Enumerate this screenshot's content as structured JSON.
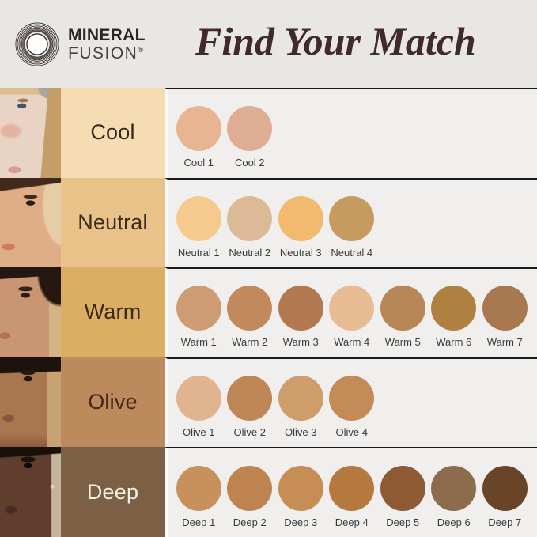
{
  "header": {
    "logo": {
      "line1": "MINERAL",
      "line2": "FUSION",
      "registered": "®"
    },
    "title": "Find Your Match"
  },
  "theme": {
    "page_bg": "#e9e7e4",
    "panel_bg": "#f0efed",
    "panel_border": "#1a1a1a",
    "title_color": "#402a2e",
    "logo_color": "#2e2523",
    "swatch_label_color": "#3b3b3b"
  },
  "rows": [
    {
      "key": "cool",
      "label": "Cool",
      "cell_bg": "#f5dcb2",
      "label_color": "#33281d",
      "swatches": [
        {
          "name": "Cool 1",
          "color": "#e9b492"
        },
        {
          "name": "Cool 2",
          "color": "#dfac94"
        }
      ]
    },
    {
      "key": "neutral",
      "label": "Neutral",
      "cell_bg": "#e9c28a",
      "label_color": "#3a2c1c",
      "swatches": [
        {
          "name": "Neutral 1",
          "color": "#f6c98f"
        },
        {
          "name": "Neutral 2",
          "color": "#dcba97"
        },
        {
          "name": "Neutral 3",
          "color": "#f2ba6e"
        },
        {
          "name": "Neutral 4",
          "color": "#c69b5f"
        }
      ]
    },
    {
      "key": "warm",
      "label": "Warm",
      "cell_bg": "#dcae63",
      "label_color": "#392a1a",
      "swatches": [
        {
          "name": "Warm 1",
          "color": "#cd9c73"
        },
        {
          "name": "Warm 2",
          "color": "#c28a5c"
        },
        {
          "name": "Warm 3",
          "color": "#b27950"
        },
        {
          "name": "Warm 4",
          "color": "#e7bc93"
        },
        {
          "name": "Warm 5",
          "color": "#b78758"
        },
        {
          "name": "Warm 6",
          "color": "#b08040"
        },
        {
          "name": "Warm 7",
          "color": "#a87950"
        }
      ]
    },
    {
      "key": "olive",
      "label": "Olive",
      "cell_bg": "#bd8a5e",
      "label_color": "#46281a",
      "swatches": [
        {
          "name": "Olive 1",
          "color": "#e0b48f"
        },
        {
          "name": "Olive 2",
          "color": "#bf8656"
        },
        {
          "name": "Olive 3",
          "color": "#cf9c6c"
        },
        {
          "name": "Olive 4",
          "color": "#c28b58"
        }
      ]
    },
    {
      "key": "deep",
      "label": "Deep",
      "cell_bg": "#7b6045",
      "label_color": "#f7f1e4",
      "swatches": [
        {
          "name": "Deep 1",
          "color": "#c8905c"
        },
        {
          "name": "Deep 2",
          "color": "#bf8350"
        },
        {
          "name": "Deep 3",
          "color": "#c68d54"
        },
        {
          "name": "Deep 4",
          "color": "#b5783f"
        },
        {
          "name": "Deep 5",
          "color": "#8d5a33"
        },
        {
          "name": "Deep 6",
          "color": "#8c6c4d"
        },
        {
          "name": "Deep 7",
          "color": "#6a4427"
        }
      ]
    }
  ]
}
